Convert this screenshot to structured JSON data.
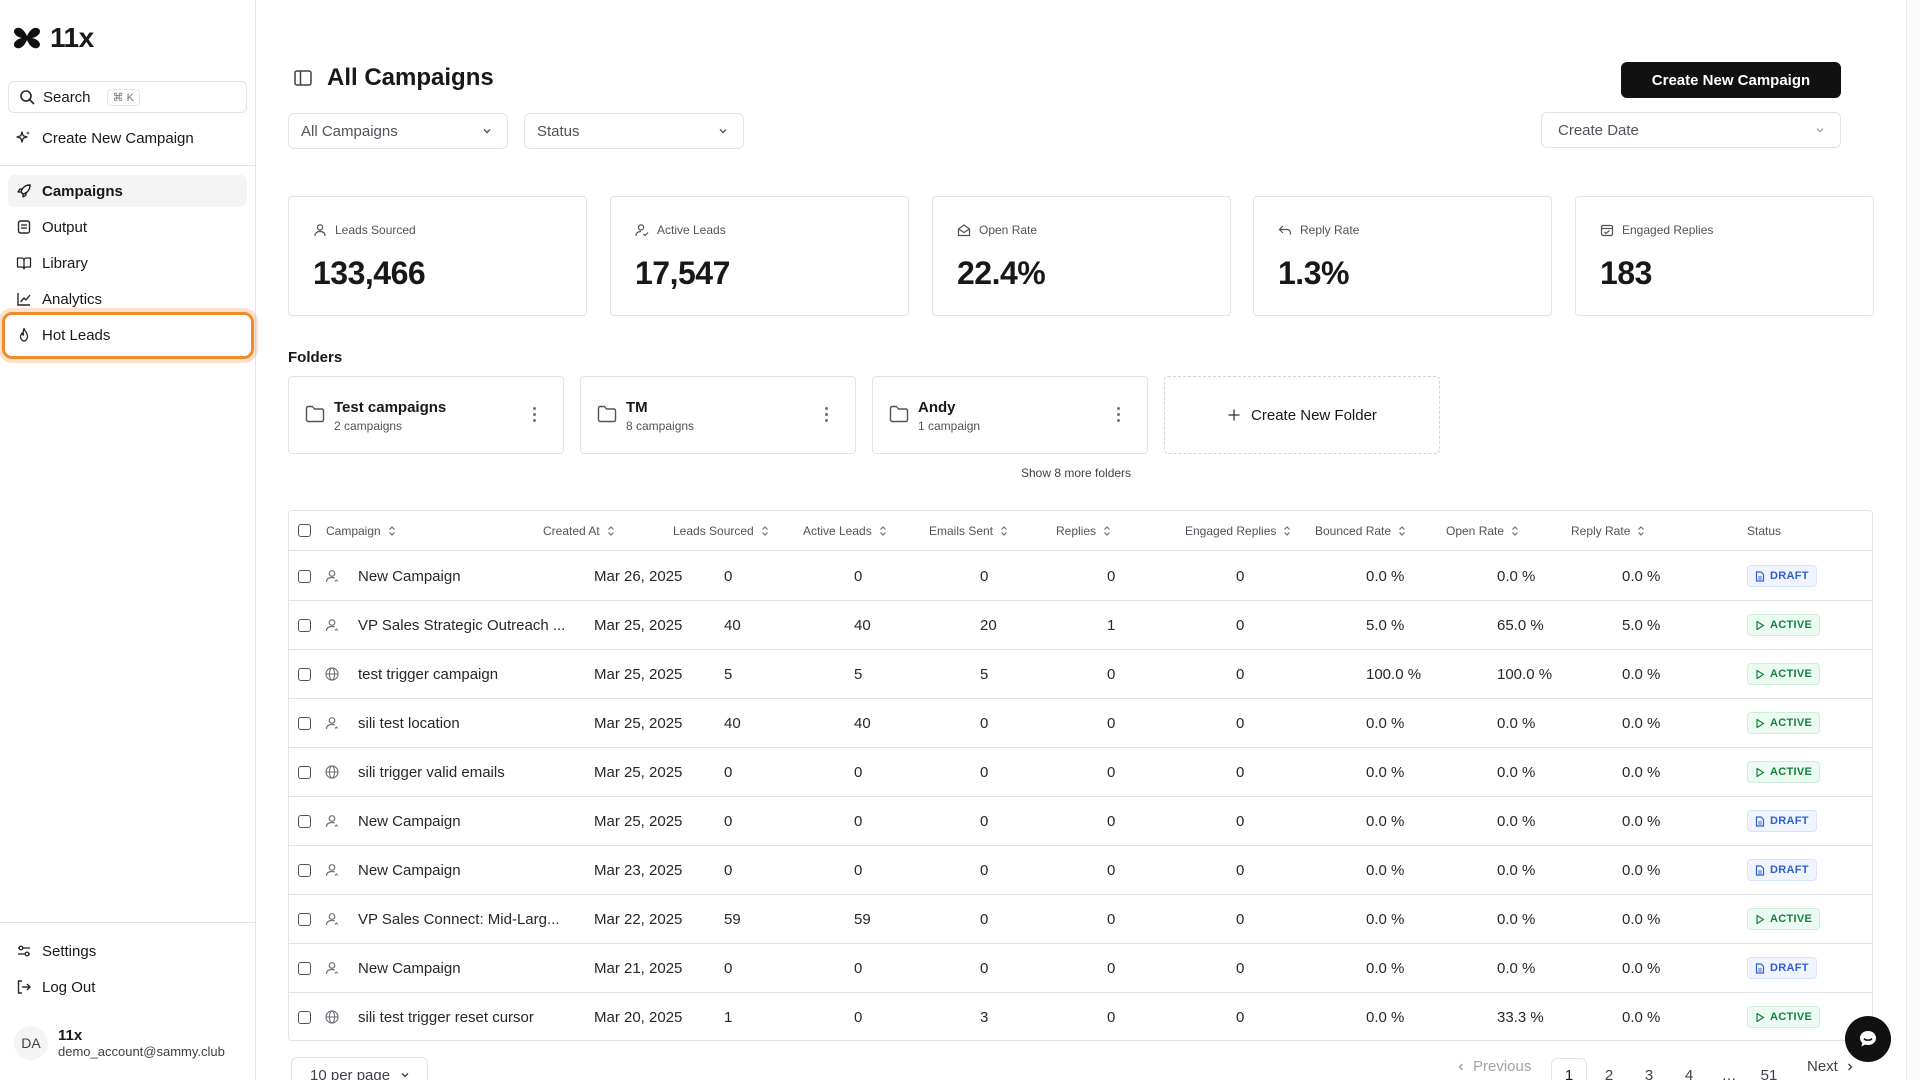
{
  "brand": {
    "name": "11x"
  },
  "sidebar": {
    "search_label": "Search",
    "search_shortcut": "⌘ K",
    "create_label": "Create New Campaign",
    "nav": [
      {
        "label": "Campaigns",
        "icon": "rocket-icon",
        "active": true
      },
      {
        "label": "Output",
        "icon": "document-icon"
      },
      {
        "label": "Library",
        "icon": "book-open-icon"
      },
      {
        "label": "Analytics",
        "icon": "chart-line-icon"
      },
      {
        "label": "Hot Leads",
        "icon": "flame-icon",
        "highlighted": true
      }
    ],
    "settings_label": "Settings",
    "logout_label": "Log Out",
    "user": {
      "initials": "DA",
      "name": "11x",
      "email": "demo_account@sammy.club"
    }
  },
  "header": {
    "title": "All Campaigns",
    "create_button": "Create New Campaign"
  },
  "filters": {
    "campaigns_select": "All Campaigns",
    "status_select": "Status",
    "date_select": "Create Date"
  },
  "stats": [
    {
      "label": "Leads Sourced",
      "value": "133,466",
      "icon": "user-icon"
    },
    {
      "label": "Active Leads",
      "value": "17,547",
      "icon": "user-check-icon"
    },
    {
      "label": "Open Rate",
      "value": "22.4%",
      "icon": "mail-open-icon"
    },
    {
      "label": "Reply Rate",
      "value": "1.3%",
      "icon": "reply-icon"
    },
    {
      "label": "Engaged Replies",
      "value": "183",
      "icon": "calendar-check-icon"
    }
  ],
  "folders": {
    "title": "Folders",
    "items": [
      {
        "name": "Test campaigns",
        "count": "2 campaigns"
      },
      {
        "name": "TM",
        "count": "8 campaigns"
      },
      {
        "name": "Andy",
        "count": "1 campaign"
      }
    ],
    "create_label": "Create New Folder",
    "show_more": "Show 8 more folders"
  },
  "table": {
    "columns": [
      "Campaign",
      "Created At",
      "Leads Sourced",
      "Active Leads",
      "Emails Sent",
      "Replies",
      "Engaged Replies",
      "Bounced Rate",
      "Open Rate",
      "Reply Rate",
      "Status"
    ],
    "rows": [
      {
        "type": "user",
        "campaign": "New Campaign",
        "created": "Mar 26, 2025",
        "leads": "0",
        "active": "0",
        "sent": "0",
        "replies": "0",
        "engaged": "0",
        "bounced": "0.0 %",
        "open": "0.0 %",
        "reply": "0.0 %",
        "status": "DRAFT"
      },
      {
        "type": "user",
        "campaign": "VP Sales Strategic Outreach ...",
        "created": "Mar 25, 2025",
        "leads": "40",
        "active": "40",
        "sent": "20",
        "replies": "1",
        "engaged": "0",
        "bounced": "5.0 %",
        "open": "65.0 %",
        "reply": "5.0 %",
        "status": "ACTIVE"
      },
      {
        "type": "globe",
        "campaign": "test trigger campaign",
        "created": "Mar 25, 2025",
        "leads": "5",
        "active": "5",
        "sent": "5",
        "replies": "0",
        "engaged": "0",
        "bounced": "100.0 %",
        "open": "100.0 %",
        "reply": "0.0 %",
        "status": "ACTIVE"
      },
      {
        "type": "user",
        "campaign": "sili test location",
        "created": "Mar 25, 2025",
        "leads": "40",
        "active": "40",
        "sent": "0",
        "replies": "0",
        "engaged": "0",
        "bounced": "0.0 %",
        "open": "0.0 %",
        "reply": "0.0 %",
        "status": "ACTIVE"
      },
      {
        "type": "globe",
        "campaign": "sili trigger valid emails",
        "created": "Mar 25, 2025",
        "leads": "0",
        "active": "0",
        "sent": "0",
        "replies": "0",
        "engaged": "0",
        "bounced": "0.0 %",
        "open": "0.0 %",
        "reply": "0.0 %",
        "status": "ACTIVE"
      },
      {
        "type": "user",
        "campaign": "New Campaign",
        "created": "Mar 25, 2025",
        "leads": "0",
        "active": "0",
        "sent": "0",
        "replies": "0",
        "engaged": "0",
        "bounced": "0.0 %",
        "open": "0.0 %",
        "reply": "0.0 %",
        "status": "DRAFT"
      },
      {
        "type": "user",
        "campaign": "New Campaign",
        "created": "Mar 23, 2025",
        "leads": "0",
        "active": "0",
        "sent": "0",
        "replies": "0",
        "engaged": "0",
        "bounced": "0.0 %",
        "open": "0.0 %",
        "reply": "0.0 %",
        "status": "DRAFT"
      },
      {
        "type": "user",
        "campaign": "VP Sales Connect: Mid-Larg...",
        "created": "Mar 22, 2025",
        "leads": "59",
        "active": "59",
        "sent": "0",
        "replies": "0",
        "engaged": "0",
        "bounced": "0.0 %",
        "open": "0.0 %",
        "reply": "0.0 %",
        "status": "ACTIVE"
      },
      {
        "type": "user",
        "campaign": "New Campaign",
        "created": "Mar 21, 2025",
        "leads": "0",
        "active": "0",
        "sent": "0",
        "replies": "0",
        "engaged": "0",
        "bounced": "0.0 %",
        "open": "0.0 %",
        "reply": "0.0 %",
        "status": "DRAFT"
      },
      {
        "type": "globe",
        "campaign": "sili test trigger reset cursor",
        "created": "Mar 20, 2025",
        "leads": "1",
        "active": "0",
        "sent": "3",
        "replies": "0",
        "engaged": "0",
        "bounced": "0.0 %",
        "open": "33.3 %",
        "reply": "0.0 %",
        "status": "ACTIVE"
      }
    ]
  },
  "pagination": {
    "per_page": "10 per page",
    "previous": "Previous",
    "next": "Next",
    "pages": [
      "1",
      "2",
      "3",
      "4",
      "…",
      "51"
    ],
    "current": "1"
  },
  "colors": {
    "primary": "#111111",
    "highlight": "#f08a2e",
    "draft": "#2f5fd0",
    "active": "#15803d"
  }
}
